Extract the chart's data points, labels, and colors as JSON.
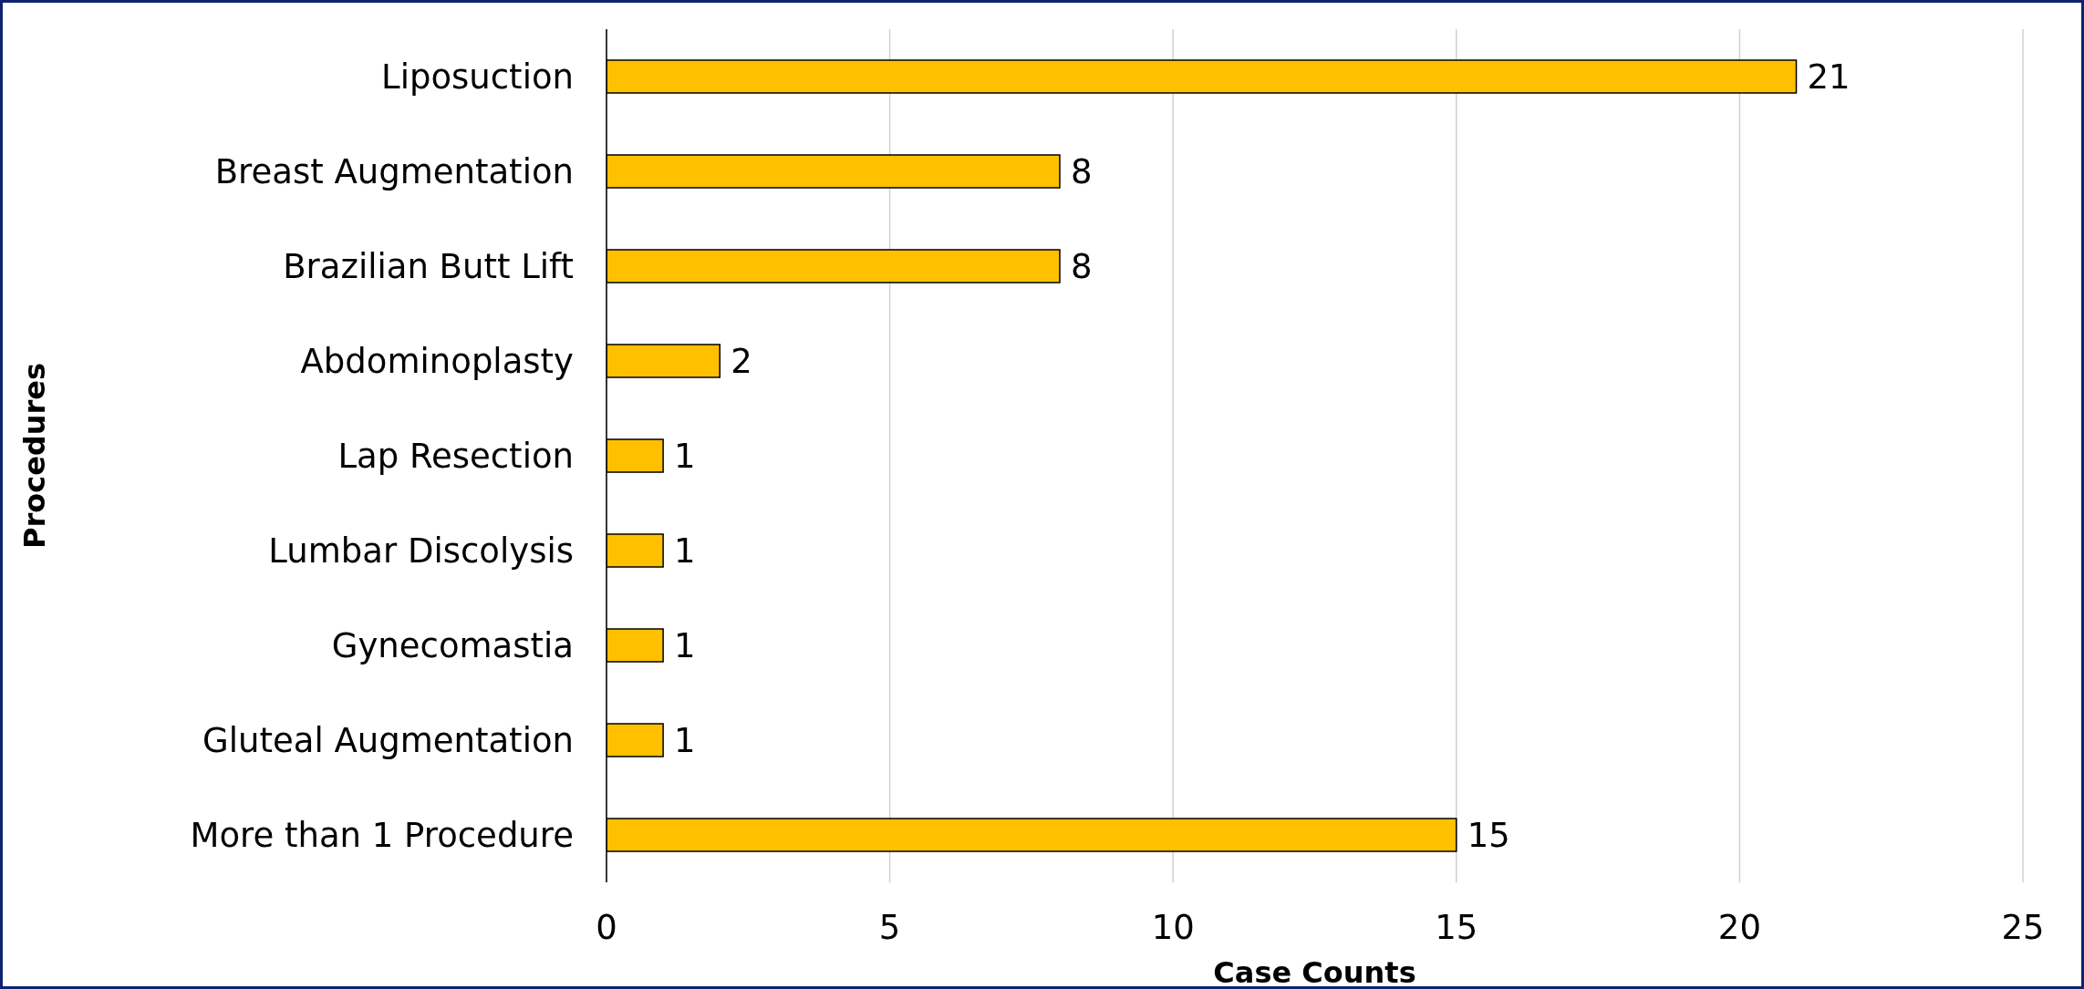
{
  "chart_data": {
    "type": "bar",
    "orientation": "horizontal",
    "xlabel": "Case Counts",
    "ylabel": "Procedures",
    "categories": [
      "Liposuction",
      "Breast Augmentation",
      "Brazilian Butt Lift",
      "Abdominoplasty",
      "Lap Resection",
      "Lumbar Discolysis",
      "Gynecomastia",
      "Gluteal Augmentation",
      "More than 1 Procedure"
    ],
    "values": [
      21,
      8,
      8,
      2,
      1,
      1,
      1,
      1,
      15
    ],
    "color": "#ffc000",
    "xlim": [
      0,
      25
    ],
    "xticks": [
      0,
      5,
      10,
      15,
      20,
      25
    ],
    "grid": "x",
    "data_labels": true
  }
}
